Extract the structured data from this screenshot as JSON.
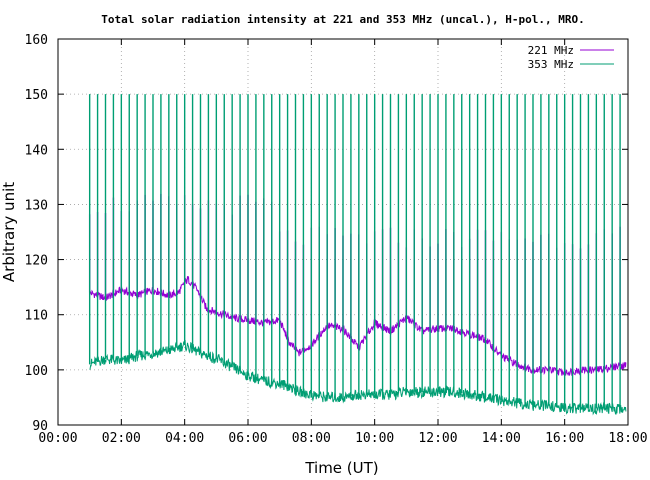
{
  "chart_data": {
    "type": "line",
    "title": "Total solar radiation intensity at 221 and 353 MHz (uncal.), H-pol., MRO.",
    "xlabel": "Time (UT)",
    "ylabel": "Arbitrary unit",
    "xlim": [
      0,
      18
    ],
    "ylim": [
      90,
      160
    ],
    "x_ticks": [
      "00:00",
      "02:00",
      "04:00",
      "06:00",
      "08:00",
      "10:00",
      "12:00",
      "14:00",
      "16:00",
      "18:00"
    ],
    "x_tick_values": [
      0,
      2,
      4,
      6,
      8,
      10,
      12,
      14,
      16,
      18
    ],
    "y_ticks": [
      90,
      100,
      110,
      120,
      130,
      140,
      150,
      160
    ],
    "grid": true,
    "legend_position": "top-right",
    "colors": {
      "s221": "#9400d3",
      "s353": "#009e73",
      "axis": "#000000",
      "grid": "#a0a0a0"
    },
    "spikes": {
      "start_hour": 1.0,
      "end_hour": 17.85,
      "interval_hours": 0.25,
      "s353_peak": 150,
      "s221_peak_early": 130,
      "s221_peak_late": 124
    },
    "series": [
      {
        "name": "221 MHz",
        "color": "#9400d3",
        "x": [
          1.0,
          1.5,
          2.0,
          2.5,
          3.0,
          3.5,
          3.8,
          4.1,
          4.4,
          4.7,
          5.0,
          5.5,
          6.0,
          6.5,
          7.0,
          7.3,
          7.6,
          8.0,
          8.5,
          9.0,
          9.5,
          10.0,
          10.5,
          11.0,
          11.5,
          12.0,
          12.5,
          13.0,
          13.5,
          14.0,
          14.5,
          15.0,
          15.5,
          16.0,
          16.5,
          17.0,
          17.5,
          18.0
        ],
        "values": [
          114,
          113,
          114.5,
          113.5,
          114.5,
          113.5,
          114,
          116.5,
          114.5,
          111,
          110.5,
          109.5,
          109,
          108.5,
          109,
          105,
          103,
          104.5,
          108,
          107.5,
          104,
          108.5,
          107,
          109.5,
          107,
          107.5,
          107.5,
          106.5,
          105.5,
          102.5,
          101,
          100,
          100,
          99.5,
          100,
          100,
          100.5,
          101
        ]
      },
      {
        "name": "353 MHz",
        "color": "#009e73",
        "x": [
          1.0,
          1.5,
          2.0,
          2.5,
          3.0,
          3.5,
          4.0,
          4.5,
          5.0,
          5.5,
          6.0,
          6.5,
          7.0,
          7.3,
          7.6,
          8.0,
          8.5,
          9.0,
          9.5,
          10.0,
          10.5,
          11.0,
          11.5,
          12.0,
          12.5,
          13.0,
          13.5,
          14.0,
          14.5,
          15.0,
          15.5,
          16.0,
          16.5,
          17.0,
          17.5,
          18.0
        ],
        "values": [
          101,
          102,
          101.5,
          102.5,
          103,
          103.5,
          104.5,
          103,
          102,
          100.5,
          99,
          98,
          97.5,
          97,
          96,
          95.5,
          95,
          95,
          95.5,
          95.5,
          95.5,
          96,
          96,
          96,
          96,
          95.5,
          95,
          94.5,
          94,
          93.5,
          93.5,
          93,
          93,
          93,
          93,
          93
        ]
      }
    ]
  }
}
